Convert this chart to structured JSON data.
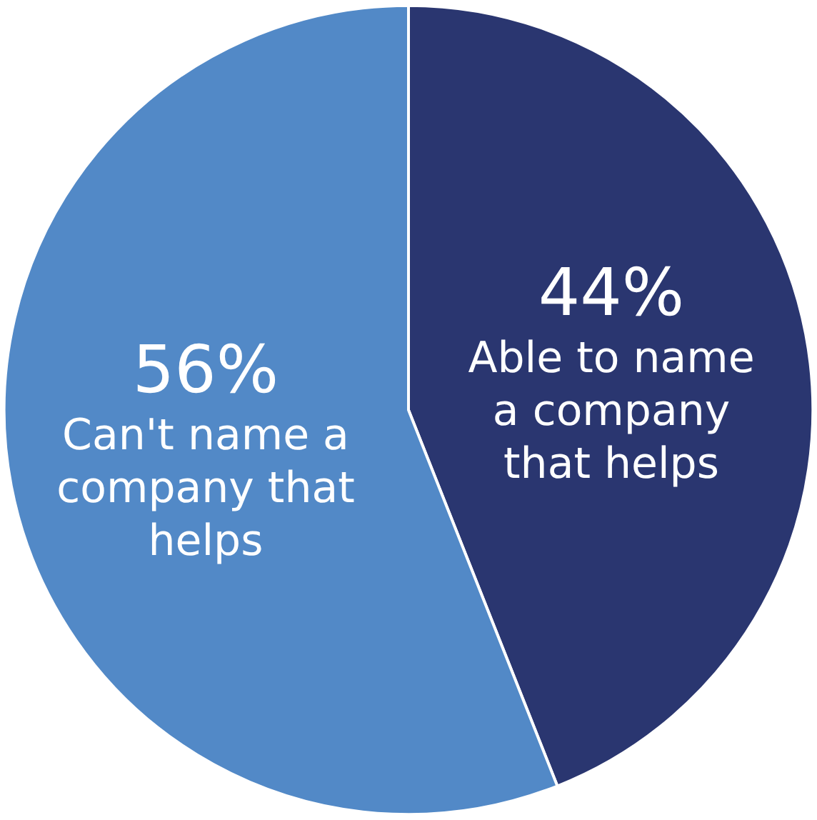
{
  "chart_data": {
    "type": "pie",
    "categories": [
      "Able to name a company that helps",
      "Can't name a company that helps"
    ],
    "values": [
      44,
      56
    ],
    "value_labels": [
      "44%",
      "56%"
    ],
    "colors": [
      "#2a3670",
      "#5289c7"
    ]
  }
}
